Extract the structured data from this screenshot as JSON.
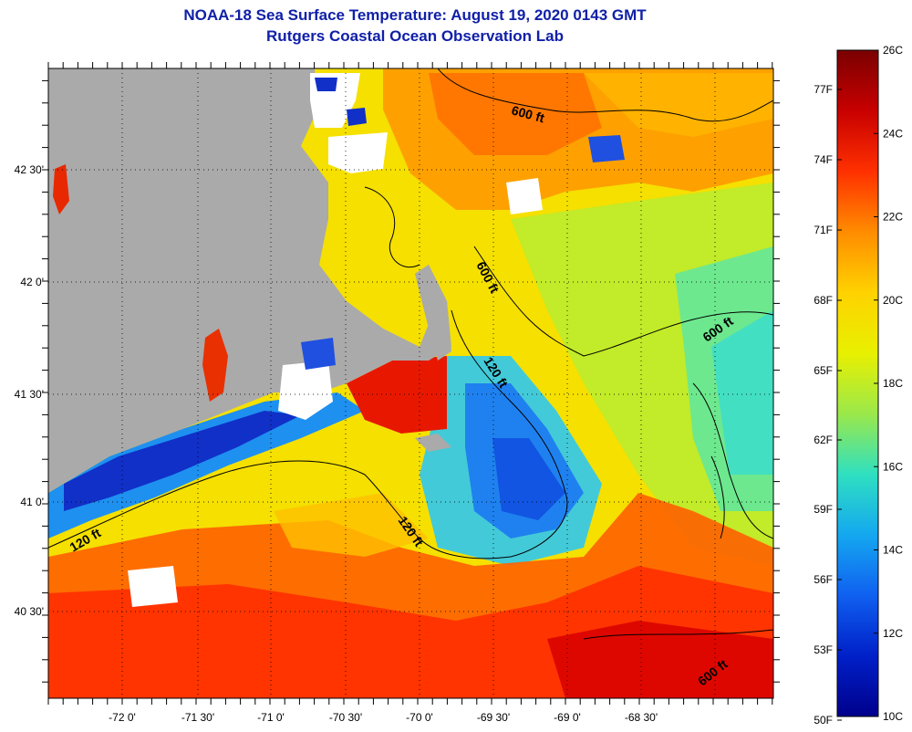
{
  "title": {
    "line1": "NOAA-18 Sea Surface Temperature:  August 19, 2020 0143 GMT",
    "line2": "Rutgers Coastal Ocean Observation Lab"
  },
  "axes": {
    "longitude_ticks": [
      "-72 0'",
      "-71 30'",
      "-71 0'",
      "-70 30'",
      "-70 0'",
      "-69 30'",
      "-69 0'",
      "-68 30'"
    ],
    "latitude_ticks": [
      "42 30'",
      "42 0'",
      "41 30'",
      "41 0'",
      "40 30'"
    ]
  },
  "contour_labels": [
    {
      "text": "600 ft",
      "rotation": 15
    },
    {
      "text": "600 ft",
      "rotation": 62
    },
    {
      "text": "600 ft",
      "rotation": -35
    },
    {
      "text": "120 ft",
      "rotation": 58
    },
    {
      "text": "120 ft",
      "rotation": 55
    },
    {
      "text": "120 ft",
      "rotation": -30
    },
    {
      "text": "600 ft",
      "rotation": -38
    }
  ],
  "colorbar": {
    "celsius_labels": [
      "26C",
      "24C",
      "22C",
      "20C",
      "18C",
      "16C",
      "14C",
      "12C",
      "10C"
    ],
    "fahrenheit_labels": [
      "77F",
      "74F",
      "71F",
      "68F",
      "65F",
      "62F",
      "59F",
      "56F",
      "53F",
      "50F"
    ],
    "colors": [
      "#7a0000",
      "#c80000",
      "#ff3000",
      "#ff8c00",
      "#ffd200",
      "#e8f000",
      "#9be84a",
      "#2fe0c0",
      "#14a8f0",
      "#1060f0",
      "#0020c8",
      "#00008c"
    ]
  },
  "colors": {
    "land": "#aaaaaa",
    "cloud": "#ffffff",
    "title": "#1020a8"
  }
}
